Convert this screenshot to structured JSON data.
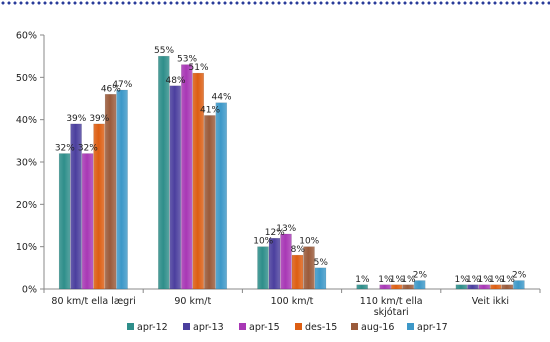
{
  "chart_data": {
    "type": "bar",
    "title": "",
    "xlabel": "",
    "ylabel": "",
    "ylim": [
      0,
      60
    ],
    "yticks": [
      "0%",
      "10%",
      "20%",
      "30%",
      "40%",
      "50%",
      "60%"
    ],
    "grid": false,
    "legend_position": "bottom",
    "categories": [
      "80 km/t ella lægri",
      "90 km/t",
      "100 km/t",
      "110 km/t ella skjótari",
      "Veit ikki"
    ],
    "series": [
      {
        "name": "apr-12",
        "color": "#2e8e8a",
        "values": [
          32,
          55,
          10,
          1,
          1
        ],
        "labels": [
          "32%",
          "55%",
          "10%",
          "1%",
          "1%"
        ]
      },
      {
        "name": "apr-13",
        "color": "#4b3f9e",
        "values": [
          39,
          48,
          12,
          0,
          1
        ],
        "labels": [
          "39%",
          "48%",
          "12%",
          "",
          "1%"
        ]
      },
      {
        "name": "apr-15",
        "color": "#a838b5",
        "values": [
          32,
          53,
          13,
          1,
          1
        ],
        "labels": [
          "32%",
          "53%",
          "13%",
          "1%",
          "1%"
        ]
      },
      {
        "name": "des-15",
        "color": "#dd5e12",
        "values": [
          39,
          51,
          8,
          1,
          1
        ],
        "labels": [
          "39%",
          "51%",
          "8%",
          "1%",
          "1%"
        ]
      },
      {
        "name": "aug-16",
        "color": "#9a5a3a",
        "values": [
          46,
          41,
          10,
          1,
          1
        ],
        "labels": [
          "46%",
          "41%",
          "10%",
          "1%",
          "1%"
        ]
      },
      {
        "name": "apr-17",
        "color": "#3d98c8",
        "values": [
          47,
          44,
          5,
          2,
          2
        ],
        "labels": [
          "47%",
          "44%",
          "5%",
          "2%",
          "2%"
        ]
      }
    ]
  }
}
